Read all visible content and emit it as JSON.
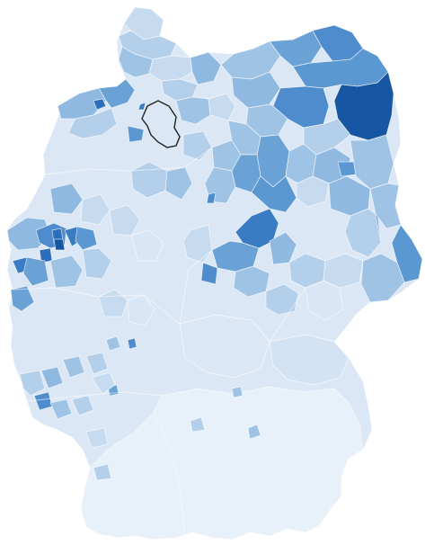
{
  "map": {
    "type": "choropleth",
    "colors": {
      "level_1": "#e8f0fa",
      "level_2": "#d8e6f5",
      "level_3": "#bdd6ee",
      "level_4": "#9dc3e5",
      "level_5": "#75a9da",
      "level_6": "#4f8ccd",
      "level_7": "#2c6dbc",
      "level_8": "#1756a3",
      "highlight_stroke": "#222222",
      "border": "#ffffff"
    }
  }
}
